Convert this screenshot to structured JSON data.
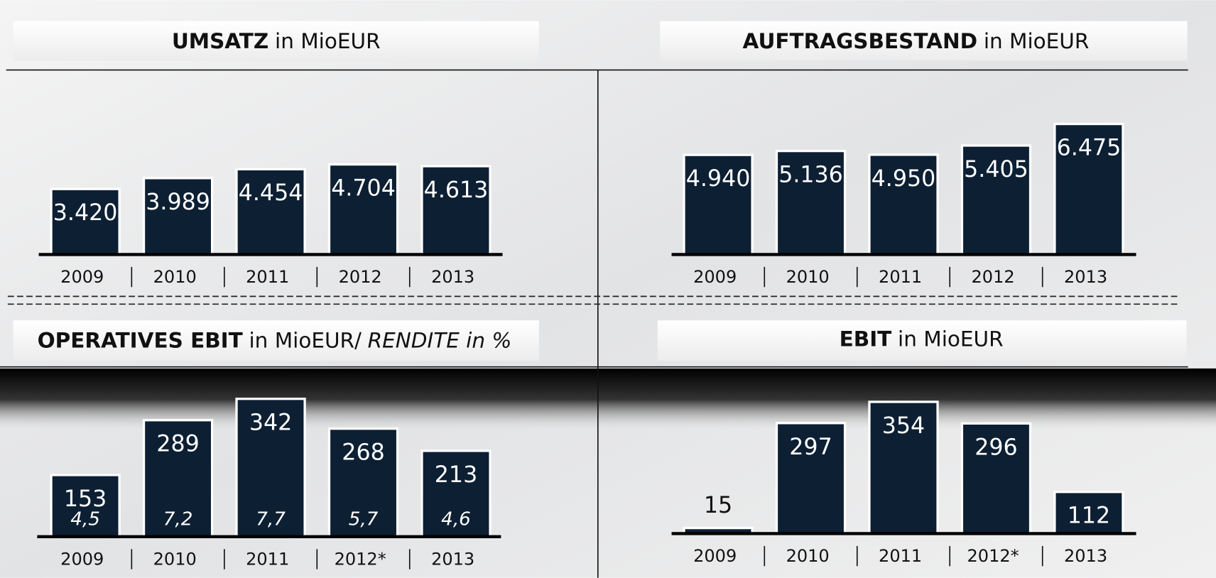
{
  "chart_data": [
    {
      "type": "bar",
      "title": [
        "UMSATZ",
        "in MioEUR"
      ],
      "categories": [
        "2009",
        "2010",
        "2011",
        "2012",
        "2013"
      ],
      "values": [
        3420,
        3989,
        4454,
        4704,
        4613
      ],
      "value_labels": [
        "3.420",
        "3.989",
        "4.454",
        "4.704",
        "4.613"
      ],
      "color": "#0d1f33"
    },
    {
      "type": "bar",
      "title": [
        "AUFTRAGSBESTAND",
        "in MioEUR"
      ],
      "categories": [
        "2009",
        "2010",
        "2011",
        "2012",
        "2013"
      ],
      "values": [
        4940,
        5136,
        4950,
        5405,
        6475
      ],
      "value_labels": [
        "4.940",
        "5.136",
        "4.950",
        "5.405",
        "6.475"
      ],
      "color": "#0d1f33"
    },
    {
      "type": "bar",
      "title": [
        "OPERATIVES EBIT",
        "in MioEUR/",
        "RENDITE in %"
      ],
      "categories": [
        "2009",
        "2010",
        "2011",
        "2012*",
        "2013"
      ],
      "values": [
        153,
        289,
        342,
        268,
        213
      ],
      "rendite": {
        "values": [
          4.5,
          7.2,
          7.7,
          5.7,
          4.6
        ],
        "value_labels": [
          "4,5",
          "7,2",
          "7,7",
          "5,7",
          "4,6"
        ]
      },
      "color": "#0d1f33"
    },
    {
      "type": "bar",
      "title": [
        "EBIT",
        "in MioEUR"
      ],
      "categories": [
        "2009",
        "2010",
        "2011",
        "2012*",
        "2013"
      ],
      "values": [
        15,
        297,
        354,
        296,
        112
      ],
      "color": "#0d1f33"
    }
  ]
}
